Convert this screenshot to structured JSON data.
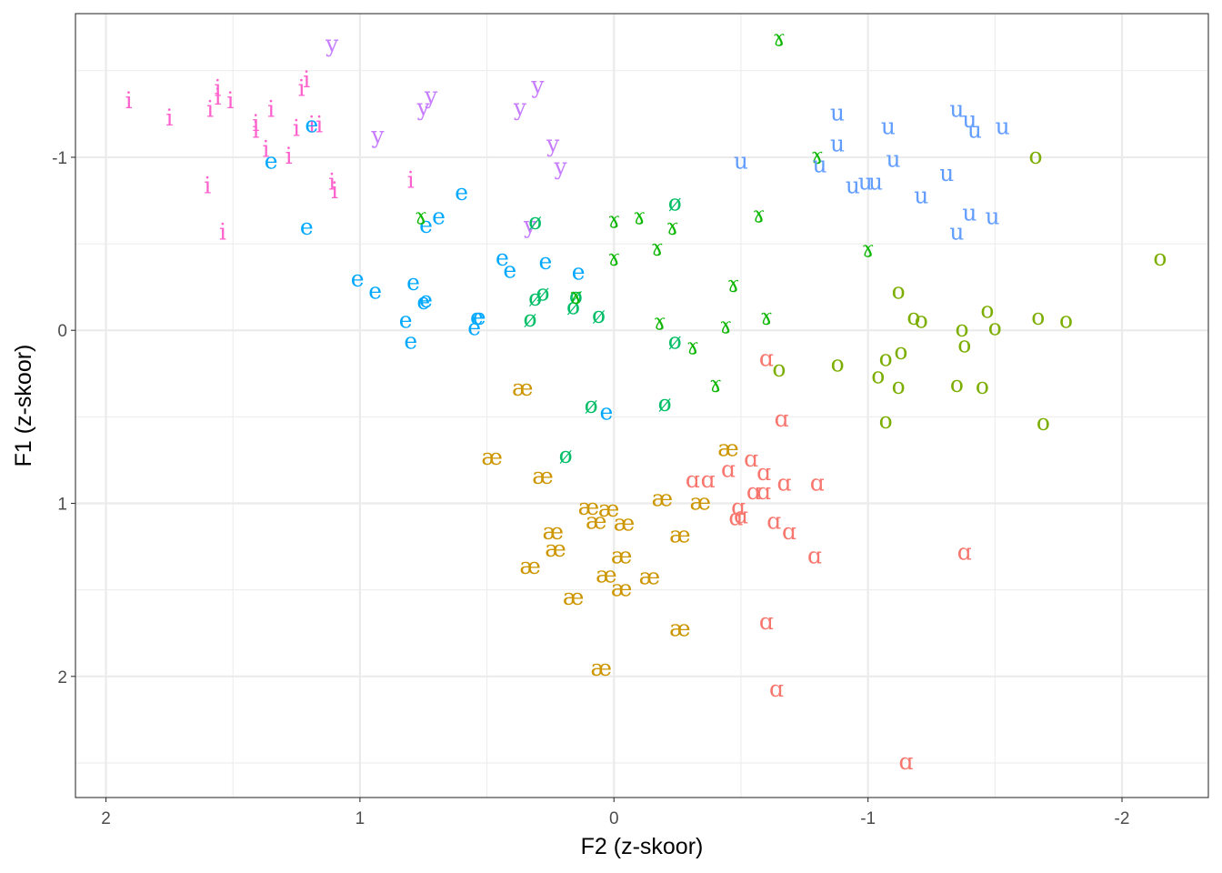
{
  "chart_data": {
    "type": "scatter",
    "title": "",
    "xlabel": "F2 (z-skoor)",
    "ylabel": "F1 (z-skoor)",
    "x_reversed": true,
    "y_reversed": true,
    "xlim": [
      2.12,
      -2.34
    ],
    "ylim": [
      -1.83,
      2.7
    ],
    "x_ticks": [
      2,
      1,
      0,
      -1,
      -2
    ],
    "x_tick_labels": [
      "2",
      "1",
      "0",
      "-1",
      "-2"
    ],
    "y_ticks": [
      -1,
      0,
      1,
      2
    ],
    "y_tick_labels": [
      "-1",
      "0",
      "1",
      "2"
    ],
    "grid": true,
    "legend": "none",
    "colors": {
      "ɑ": "#F8766D",
      "æ": "#CD9600",
      "o": "#7CAE00",
      "ɤ": "#0CB702",
      "ø": "#00BE67",
      "e": "#00A9FF",
      "u": "#619CFF",
      "y": "#C77CFF",
      "i": "#FF61CC"
    },
    "series": [
      {
        "name": "i",
        "points": [
          [
            1.91,
            -1.32
          ],
          [
            1.75,
            -1.22
          ],
          [
            1.59,
            -1.27
          ],
          [
            1.56,
            -1.34
          ],
          [
            1.56,
            -1.39
          ],
          [
            1.51,
            -1.32
          ],
          [
            1.41,
            -1.19
          ],
          [
            1.41,
            -1.15
          ],
          [
            1.35,
            -1.27
          ],
          [
            1.25,
            -1.16
          ],
          [
            1.21,
            -1.44
          ],
          [
            1.23,
            -1.39
          ],
          [
            1.19,
            -1.18
          ],
          [
            1.16,
            -1.18
          ],
          [
            1.37,
            -1.04
          ],
          [
            1.28,
            -1.0
          ],
          [
            1.11,
            -0.85
          ],
          [
            1.1,
            -0.8
          ],
          [
            1.6,
            -0.83
          ],
          [
            1.54,
            -0.56
          ],
          [
            0.8,
            -0.86
          ]
        ]
      },
      {
        "name": "y",
        "points": [
          [
            1.11,
            -1.65
          ],
          [
            0.72,
            -1.35
          ],
          [
            0.75,
            -1.28
          ],
          [
            0.3,
            -1.41
          ],
          [
            0.37,
            -1.28
          ],
          [
            0.93,
            -1.12
          ],
          [
            0.24,
            -1.07
          ],
          [
            0.21,
            -0.94
          ],
          [
            0.33,
            -0.6
          ]
        ]
      },
      {
        "name": "e",
        "points": [
          [
            1.35,
            -0.97
          ],
          [
            1.19,
            -1.18
          ],
          [
            1.21,
            -0.59
          ],
          [
            0.6,
            -0.79
          ],
          [
            0.69,
            -0.65
          ],
          [
            0.74,
            -0.6
          ],
          [
            0.44,
            -0.41
          ],
          [
            0.41,
            -0.34
          ],
          [
            0.27,
            -0.39
          ],
          [
            0.14,
            -0.33
          ],
          [
            1.01,
            -0.29
          ],
          [
            0.94,
            -0.22
          ],
          [
            0.79,
            -0.27
          ],
          [
            0.75,
            -0.16
          ],
          [
            0.74,
            -0.17
          ],
          [
            0.82,
            -0.05
          ],
          [
            0.54,
            -0.07
          ],
          [
            0.53,
            -0.07
          ],
          [
            0.55,
            -0.01
          ],
          [
            0.8,
            0.07
          ],
          [
            0.03,
            0.48
          ]
        ]
      },
      {
        "name": "ø",
        "points": [
          [
            -0.24,
            -0.73
          ],
          [
            0.31,
            -0.62
          ],
          [
            0.31,
            -0.18
          ],
          [
            0.28,
            -0.21
          ],
          [
            0.15,
            -0.19
          ],
          [
            0.16,
            -0.13
          ],
          [
            0.06,
            -0.08
          ],
          [
            0.33,
            -0.06
          ],
          [
            -0.24,
            0.07
          ],
          [
            0.09,
            0.44
          ],
          [
            -0.2,
            0.43
          ],
          [
            0.19,
            0.73
          ]
        ]
      },
      {
        "name": "ɤ",
        "points": [
          [
            -0.65,
            -1.68
          ],
          [
            -0.8,
            -1.0
          ],
          [
            0.76,
            -0.65
          ],
          [
            0.0,
            -0.63
          ],
          [
            -0.1,
            -0.65
          ],
          [
            -0.23,
            -0.59
          ],
          [
            -0.57,
            -0.66
          ],
          [
            -0.17,
            -0.47
          ],
          [
            0.0,
            -0.41
          ],
          [
            -1.0,
            -0.46
          ],
          [
            -0.47,
            -0.26
          ],
          [
            0.15,
            -0.19
          ],
          [
            -0.6,
            -0.07
          ],
          [
            -0.18,
            -0.04
          ],
          [
            -0.44,
            -0.02
          ],
          [
            -0.31,
            0.1
          ],
          [
            -0.4,
            0.32
          ]
        ]
      },
      {
        "name": "u",
        "points": [
          [
            -0.88,
            -1.25
          ],
          [
            -1.35,
            -1.27
          ],
          [
            -1.4,
            -1.21
          ],
          [
            -1.42,
            -1.15
          ],
          [
            -1.53,
            -1.17
          ],
          [
            -1.08,
            -1.17
          ],
          [
            -0.88,
            -1.07
          ],
          [
            -0.5,
            -0.97
          ],
          [
            -0.81,
            -0.95
          ],
          [
            -1.1,
            -0.98
          ],
          [
            -1.31,
            -0.9
          ],
          [
            -0.94,
            -0.83
          ],
          [
            -0.99,
            -0.85
          ],
          [
            -1.03,
            -0.85
          ],
          [
            -1.21,
            -0.77
          ],
          [
            -1.4,
            -0.67
          ],
          [
            -1.49,
            -0.65
          ],
          [
            -1.35,
            -0.56
          ]
        ]
      },
      {
        "name": "o",
        "points": [
          [
            -1.66,
            -1.0
          ],
          [
            -2.15,
            -0.41
          ],
          [
            -1.12,
            -0.22
          ],
          [
            -1.18,
            -0.07
          ],
          [
            -1.21,
            -0.05
          ],
          [
            -1.47,
            -0.11
          ],
          [
            -1.67,
            -0.07
          ],
          [
            -1.78,
            -0.05
          ],
          [
            -1.5,
            -0.01
          ],
          [
            -1.37,
            -0.0
          ],
          [
            -1.38,
            0.09
          ],
          [
            -1.13,
            0.13
          ],
          [
            -1.07,
            0.17
          ],
          [
            -0.88,
            0.2
          ],
          [
            -0.65,
            0.23
          ],
          [
            -1.04,
            0.27
          ],
          [
            -1.12,
            0.33
          ],
          [
            -1.35,
            0.32
          ],
          [
            -1.45,
            0.33
          ],
          [
            -1.07,
            0.53
          ],
          [
            -1.69,
            0.54
          ]
        ]
      },
      {
        "name": "æ",
        "points": [
          [
            0.36,
            0.34
          ],
          [
            0.48,
            0.74
          ],
          [
            0.28,
            0.85
          ],
          [
            -0.45,
            0.69
          ],
          [
            -0.19,
            0.98
          ],
          [
            -0.34,
            1.0
          ],
          [
            0.1,
            1.03
          ],
          [
            0.02,
            1.04
          ],
          [
            0.07,
            1.11
          ],
          [
            -0.04,
            1.12
          ],
          [
            0.24,
            1.17
          ],
          [
            0.23,
            1.27
          ],
          [
            -0.26,
            1.19
          ],
          [
            -0.03,
            1.31
          ],
          [
            0.33,
            1.37
          ],
          [
            0.03,
            1.42
          ],
          [
            -0.14,
            1.43
          ],
          [
            -0.03,
            1.5
          ],
          [
            0.16,
            1.55
          ],
          [
            -0.26,
            1.73
          ],
          [
            0.05,
            1.96
          ]
        ]
      },
      {
        "name": "ɑ",
        "points": [
          [
            -0.6,
            0.17
          ],
          [
            -0.66,
            0.52
          ],
          [
            -0.37,
            0.87
          ],
          [
            -0.45,
            0.81
          ],
          [
            -0.54,
            0.75
          ],
          [
            -0.59,
            0.83
          ],
          [
            -0.67,
            0.89
          ],
          [
            -0.8,
            0.89
          ],
          [
            -0.31,
            0.87
          ],
          [
            -0.55,
            0.94
          ],
          [
            -0.59,
            0.94
          ],
          [
            -0.49,
            1.03
          ],
          [
            -0.5,
            1.08
          ],
          [
            -0.48,
            1.09
          ],
          [
            -0.63,
            1.11
          ],
          [
            -0.69,
            1.17
          ],
          [
            -0.79,
            1.31
          ],
          [
            -1.38,
            1.29
          ],
          [
            -0.6,
            1.69
          ],
          [
            -0.64,
            2.08
          ],
          [
            -1.15,
            2.5
          ]
        ]
      }
    ]
  }
}
